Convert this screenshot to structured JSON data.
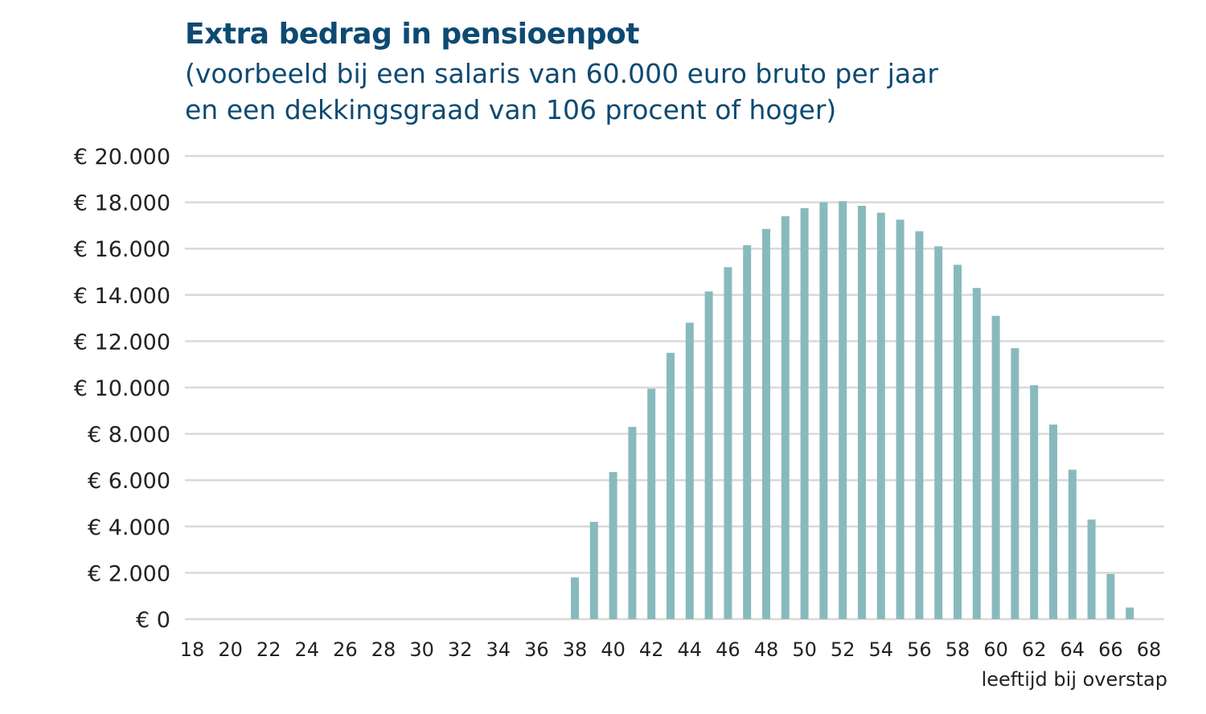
{
  "chart_data": {
    "type": "bar",
    "title": "Extra bedrag in pensioenpot",
    "subtitle": [
      "(voorbeeld bij een salaris van 60.000 euro bruto per jaar",
      "en een dekkingsgraad van 106 procent of hoger)"
    ],
    "xlabel": "leeftijd bij overstap",
    "ylabel": "",
    "ylim": [
      0,
      20000
    ],
    "yticks": [
      0,
      2000,
      4000,
      6000,
      8000,
      10000,
      12000,
      14000,
      16000,
      18000,
      20000
    ],
    "ytick_labels": [
      "€ 0",
      "€ 2.000",
      "€ 4.000",
      "€ 6.000",
      "€ 8.000",
      "€ 10.000",
      "€ 12.000",
      "€ 14.000",
      "€ 16.000",
      "€ 18.000",
      "€ 20.000"
    ],
    "xticks": [
      18,
      20,
      22,
      24,
      26,
      28,
      30,
      32,
      34,
      36,
      38,
      40,
      42,
      44,
      46,
      48,
      50,
      52,
      54,
      56,
      58,
      60,
      62,
      64,
      66,
      68
    ],
    "x": [
      18,
      19,
      20,
      21,
      22,
      23,
      24,
      25,
      26,
      27,
      28,
      29,
      30,
      31,
      32,
      33,
      34,
      35,
      36,
      37,
      38,
      39,
      40,
      41,
      42,
      43,
      44,
      45,
      46,
      47,
      48,
      49,
      50,
      51,
      52,
      53,
      54,
      55,
      56,
      57,
      58,
      59,
      60,
      61,
      62,
      63,
      64,
      65,
      66,
      67
    ],
    "values": [
      0,
      0,
      0,
      0,
      0,
      0,
      0,
      0,
      0,
      0,
      0,
      0,
      0,
      0,
      0,
      0,
      0,
      0,
      0,
      0,
      1800,
      4200,
      6350,
      8300,
      9950,
      11500,
      12800,
      14150,
      15200,
      16150,
      16850,
      17400,
      17750,
      18000,
      18050,
      17850,
      17550,
      17250,
      16750,
      16100,
      15300,
      14300,
      13100,
      11700,
      10100,
      8400,
      6450,
      4300,
      1950,
      500
    ],
    "grid": "horizontal",
    "legend": "none",
    "colors": {
      "bar": "#88babd",
      "grid": "#d9d9d9",
      "title": "#0d4a72",
      "text": "#222222"
    }
  }
}
